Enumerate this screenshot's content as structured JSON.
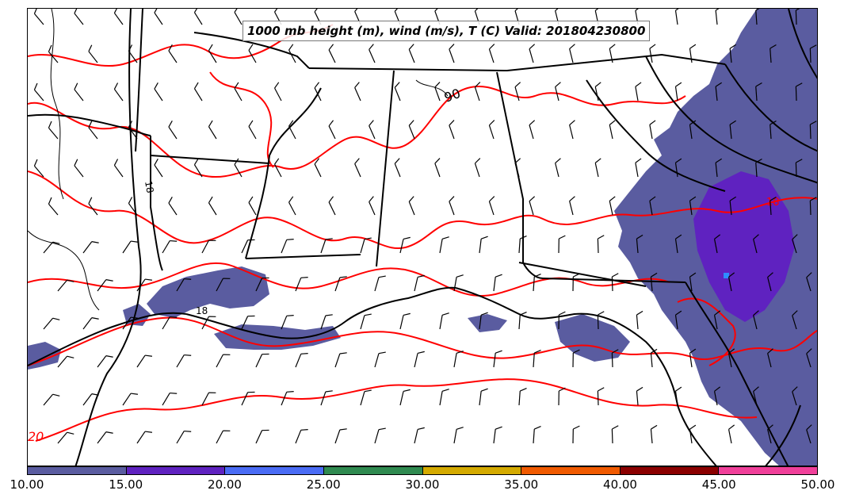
{
  "title": "1000 mb height (m), wind (m/s), T (C) Valid: 201804230800",
  "contour_labels": [
    "90",
    "20",
    "18",
    "18",
    "18"
  ],
  "colorbar": {
    "ticks": [
      "10.00",
      "15.00",
      "20.00",
      "25.00",
      "30.00",
      "35.00",
      "40.00",
      "45.00",
      "50.00"
    ],
    "colors": [
      "#5a5ca0",
      "#5f22c0",
      "#4a6cf5",
      "#2f8a50",
      "#d4aa00",
      "#f05a00",
      "#8b0000",
      "#f0409a"
    ]
  },
  "colors": {
    "temperature_contour": "#ff0000",
    "boundaries": "#000000",
    "wind_speed_fill": "#5a5ca0",
    "wind_speed_fill_strong": "#5f22c0",
    "wind_speed_fill_max": "#2f8cff"
  },
  "icons": [
    "wind-barb-icon"
  ]
}
